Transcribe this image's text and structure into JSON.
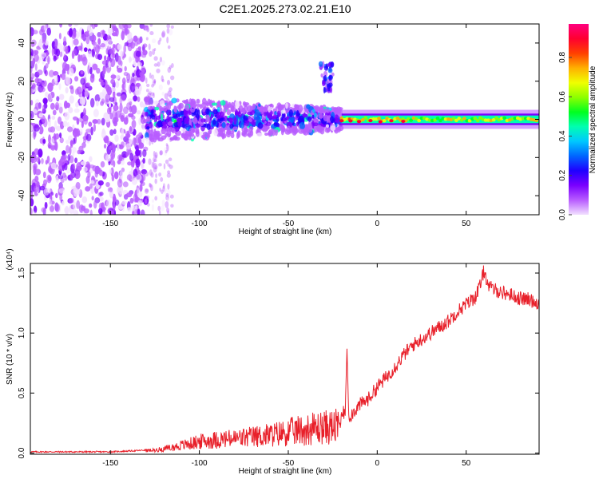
{
  "chart_data": [
    {
      "type": "heatmap",
      "title": "C2E1.2025.273.02.21.E10",
      "xlabel": "Height of straight line (km)",
      "ylabel": "Frequency (Hz)",
      "xlim": [
        -195,
        91
      ],
      "ylim": [
        -50,
        50
      ],
      "xticks": [
        -150,
        -100,
        -50,
        0,
        50
      ],
      "yticks": [
        -40,
        -20,
        0,
        20,
        40
      ],
      "grid": false,
      "colorbar": {
        "label": "Normalized spectral amplitude",
        "range": [
          0,
          0.97
        ],
        "ticks": [
          "0.0",
          "0.2",
          "0.4",
          "0.6",
          "0.8"
        ],
        "colors": [
          "#f2e0ff",
          "#b85cff",
          "#7a00ff",
          "#1f00ff",
          "#0066ff",
          "#00c8ff",
          "#00ffb0",
          "#00ff20",
          "#8cff00",
          "#f0ff00",
          "#ffb000",
          "#ff4000",
          "#ff0030",
          "#ff0080"
        ]
      },
      "regions": [
        {
          "name": "noise",
          "x": [
            -195,
            -130
          ],
          "freq": [
            -50,
            50
          ],
          "level": 0.12
        },
        {
          "name": "transition",
          "x": [
            -130,
            -20
          ],
          "freq": [
            -12,
            10
          ],
          "level": 0.28
        },
        {
          "name": "burst",
          "x": [
            -32,
            -25
          ],
          "freq": [
            15,
            30
          ],
          "level": 0.3
        },
        {
          "name": "carrier",
          "x": [
            -20,
            91
          ],
          "freq": [
            -3,
            3
          ],
          "level": 0.6
        }
      ]
    },
    {
      "type": "line",
      "xlabel": "Height of straight line (km)",
      "ylabel": "SNR (10 * v/v)",
      "yscale_note": "(x10⁴)",
      "xlim": [
        -195,
        91
      ],
      "ylim": [
        -0.01,
        1.58
      ],
      "xticks": [
        -150,
        -100,
        -50,
        0,
        50
      ],
      "yticks": [
        0.0,
        0.5,
        1.0,
        1.5
      ],
      "grid": false,
      "color": "#e8202a",
      "series": [
        {
          "x": [
            -195,
            -170,
            -150,
            -135,
            -125,
            -115,
            -105,
            -100,
            -90,
            -80,
            -70,
            -60,
            -50,
            -40,
            -30,
            -22,
            -18,
            -17,
            -16,
            -10,
            -5,
            0,
            5,
            10,
            15,
            20,
            25,
            30,
            35,
            40,
            45,
            50,
            55,
            58,
            60,
            63,
            70,
            75,
            80,
            85,
            91
          ],
          "values": [
            0.01,
            0.01,
            0.01,
            0.02,
            0.03,
            0.06,
            0.1,
            0.12,
            0.14,
            0.15,
            0.17,
            0.19,
            0.22,
            0.25,
            0.27,
            0.28,
            0.35,
            0.87,
            0.3,
            0.4,
            0.45,
            0.55,
            0.63,
            0.72,
            0.82,
            0.9,
            0.95,
            1.0,
            1.05,
            1.1,
            1.18,
            1.24,
            1.3,
            1.4,
            1.52,
            1.38,
            1.34,
            1.32,
            1.29,
            1.28,
            1.25
          ]
        }
      ]
    }
  ]
}
